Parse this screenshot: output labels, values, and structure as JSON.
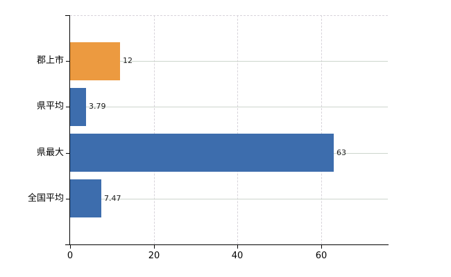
{
  "chart_data": {
    "type": "bar",
    "orientation": "horizontal",
    "title": "",
    "xlabel": "",
    "ylabel": "",
    "categories": [
      "郡上市",
      "県平均",
      "県最大",
      "全国平均"
    ],
    "values": [
      12,
      3.79,
      63,
      7.47
    ],
    "value_labels": [
      "12",
      "3.79",
      "63",
      "7.47"
    ],
    "series": [
      {
        "name": "value",
        "values": [
          12,
          3.79,
          63,
          7.47
        ],
        "colors": [
          "#ec9a40",
          "#3d6dad",
          "#3d6dad",
          "#3d6dad"
        ]
      }
    ],
    "xlim": [
      0,
      76
    ],
    "x_ticks": [
      0,
      20,
      40,
      60
    ],
    "x_tick_labels": [
      "0",
      "20",
      "40",
      "60"
    ],
    "grid": "on",
    "gridline_horizontal_color": "#ccd5cc",
    "gridline_vertical_color": "#d7d3da",
    "legend": "none",
    "background_color": "#ffffff",
    "axis_color": "#000000",
    "bar_color_default": "#3d6dad",
    "bar_color_highlight": "#ec9a40"
  }
}
